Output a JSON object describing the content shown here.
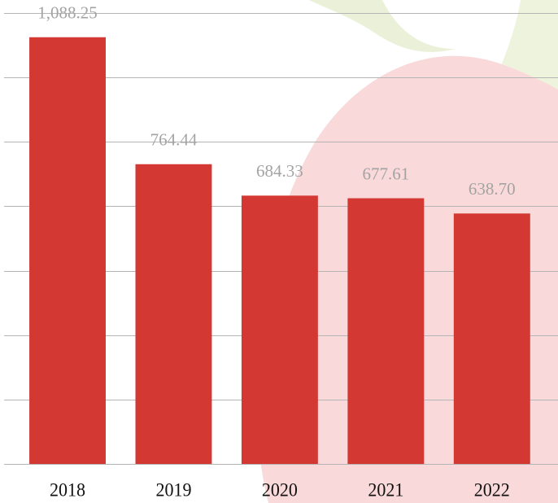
{
  "chart_data": {
    "type": "bar",
    "categories": [
      "2018",
      "2019",
      "2020",
      "2021",
      "2022"
    ],
    "values": [
      1088.25,
      764.44,
      684.33,
      677.61,
      638.7
    ],
    "value_labels": [
      "1,088.25",
      "764.44",
      "684.33",
      "677.61",
      "638.70"
    ],
    "color": "#d33833",
    "ylim": [
      0,
      1150
    ],
    "yticks": [
      0,
      164,
      329,
      493,
      657,
      821,
      986,
      1150
    ],
    "grid": true
  }
}
